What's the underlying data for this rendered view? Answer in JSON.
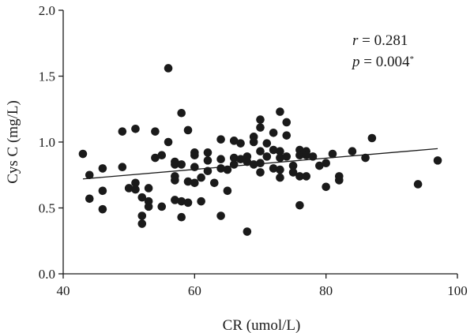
{
  "chart_data": {
    "type": "scatter",
    "xlabel": "CR (umol/L)",
    "ylabel": "Cys C (mg/L)",
    "xlim": [
      40,
      100
    ],
    "ylim": [
      0.0,
      2.0
    ],
    "xticks": [
      "40",
      "60",
      "80",
      "100"
    ],
    "yticks": [
      "0.0",
      "0.5",
      "1.0",
      "1.5",
      "2.0"
    ],
    "grid": false,
    "annotations": {
      "r_symbol": "r",
      "r_text": " = 0.281",
      "p_symbol": "p",
      "p_text": " = 0.004",
      "p_mark": "*"
    },
    "trendline": {
      "x": [
        43,
        97
      ],
      "y": [
        0.72,
        0.95
      ]
    },
    "points": [
      [
        43,
        0.91
      ],
      [
        44,
        0.75
      ],
      [
        44,
        0.57
      ],
      [
        46,
        0.8
      ],
      [
        46,
        0.63
      ],
      [
        46,
        0.49
      ],
      [
        49,
        1.08
      ],
      [
        49,
        0.81
      ],
      [
        50,
        0.65
      ],
      [
        51,
        1.1
      ],
      [
        51,
        0.69
      ],
      [
        51,
        0.64
      ],
      [
        52,
        0.58
      ],
      [
        52,
        0.44
      ],
      [
        52,
        0.38
      ],
      [
        53,
        0.65
      ],
      [
        53,
        0.55
      ],
      [
        53,
        0.51
      ],
      [
        54,
        1.08
      ],
      [
        54,
        0.88
      ],
      [
        55,
        0.9
      ],
      [
        55,
        0.51
      ],
      [
        56,
        1.56
      ],
      [
        56,
        1.0
      ],
      [
        57,
        0.85
      ],
      [
        57,
        0.83
      ],
      [
        57,
        0.74
      ],
      [
        57,
        0.71
      ],
      [
        57,
        0.56
      ],
      [
        58,
        1.22
      ],
      [
        58,
        0.83
      ],
      [
        58,
        0.55
      ],
      [
        58,
        0.43
      ],
      [
        59,
        1.09
      ],
      [
        59,
        0.7
      ],
      [
        59,
        0.54
      ],
      [
        60,
        0.92
      ],
      [
        60,
        0.9
      ],
      [
        60,
        0.81
      ],
      [
        60,
        0.69
      ],
      [
        61,
        0.73
      ],
      [
        61,
        0.55
      ],
      [
        62,
        0.92
      ],
      [
        62,
        0.86
      ],
      [
        62,
        0.78
      ],
      [
        63,
        0.69
      ],
      [
        64,
        1.02
      ],
      [
        64,
        0.87
      ],
      [
        64,
        0.8
      ],
      [
        64,
        0.44
      ],
      [
        65,
        0.79
      ],
      [
        65,
        0.63
      ],
      [
        66,
        1.01
      ],
      [
        66,
        0.88
      ],
      [
        66,
        0.83
      ],
      [
        67,
        0.99
      ],
      [
        67,
        0.87
      ],
      [
        68,
        0.89
      ],
      [
        68,
        0.85
      ],
      [
        68,
        0.32
      ],
      [
        69,
        1.04
      ],
      [
        69,
        1.0
      ],
      [
        69,
        0.83
      ],
      [
        70,
        1.17
      ],
      [
        70,
        1.11
      ],
      [
        70,
        0.93
      ],
      [
        70,
        0.84
      ],
      [
        70,
        0.77
      ],
      [
        71,
        0.99
      ],
      [
        71,
        0.89
      ],
      [
        72,
        1.07
      ],
      [
        72,
        0.94
      ],
      [
        72,
        0.8
      ],
      [
        73,
        1.23
      ],
      [
        73,
        0.93
      ],
      [
        73,
        0.88
      ],
      [
        73,
        0.79
      ],
      [
        73,
        0.73
      ],
      [
        74,
        1.15
      ],
      [
        74,
        1.05
      ],
      [
        74,
        0.89
      ],
      [
        75,
        0.82
      ],
      [
        75,
        0.77
      ],
      [
        76,
        0.94
      ],
      [
        76,
        0.9
      ],
      [
        76,
        0.74
      ],
      [
        76,
        0.52
      ],
      [
        77,
        0.93
      ],
      [
        77,
        0.9
      ],
      [
        77,
        0.74
      ],
      [
        78,
        0.89
      ],
      [
        79,
        0.82
      ],
      [
        80,
        0.84
      ],
      [
        80,
        0.66
      ],
      [
        81,
        0.91
      ],
      [
        82,
        0.74
      ],
      [
        82,
        0.71
      ],
      [
        84,
        0.93
      ],
      [
        86,
        0.88
      ],
      [
        87,
        1.03
      ],
      [
        94,
        0.68
      ],
      [
        97,
        0.86
      ]
    ]
  }
}
